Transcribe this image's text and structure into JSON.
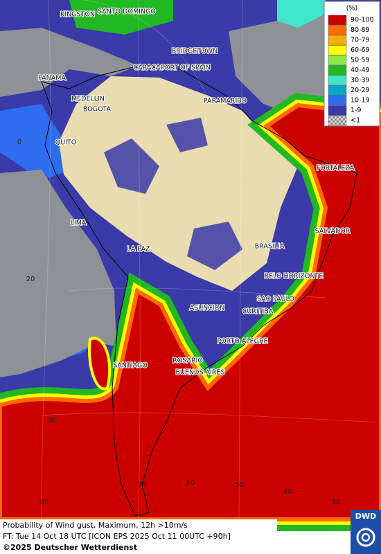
{
  "map": {
    "legend": {
      "title": "(%)",
      "entries": [
        {
          "label": "90-100",
          "color": "#cc0000"
        },
        {
          "label": "80-89",
          "color": "#ff6a00"
        },
        {
          "label": "70-79",
          "color": "#ffae00"
        },
        {
          "label": "60-69",
          "color": "#ffff00"
        },
        {
          "label": "50-59",
          "color": "#8fe84a"
        },
        {
          "label": "40-49",
          "color": "#21b821"
        },
        {
          "label": "30-39",
          "color": "#3ee6cc"
        },
        {
          "label": "20-29",
          "color": "#00a8c8"
        },
        {
          "label": "10-19",
          "color": "#2e6cf0"
        },
        {
          "label": "1-9",
          "color": "#3a3aa8"
        },
        {
          "label": "<1",
          "color": "checker"
        }
      ]
    },
    "cities": [
      "KINGSTON",
      "SANTO DOMINGO",
      "BRIDGETOWN",
      "CARACAS",
      "PORT OF SPAIN",
      "PANAMA",
      "MEDELLIN",
      "BOGOTA",
      "PARAMARIBO",
      "QUITO",
      "FORTALEZA",
      "LIMA",
      "SALVADOR",
      "BRASILIA",
      "LA PAZ",
      "BELO HORIZONTE",
      "SAO PAULO",
      "ASUNCION",
      "CURITIBA",
      "PORTO ALEGRE",
      "ROSARIO",
      "SANTIAGO",
      "BUENOS AIRES"
    ],
    "latitude_labels": [
      "0",
      "20",
      "30"
    ],
    "longitude_labels": [
      "80",
      "70",
      "60",
      "50",
      "40",
      "30"
    ],
    "caption": [
      "Probability of Wind gust, Maximum, 12h >10m/s",
      "FT: Tue 14 Oct 18 UTC [ICON EPS 2025 Oct 11 00UTC +90h]",
      "©2025 Deutscher Wetterdienst"
    ],
    "logo": "DWD"
  }
}
